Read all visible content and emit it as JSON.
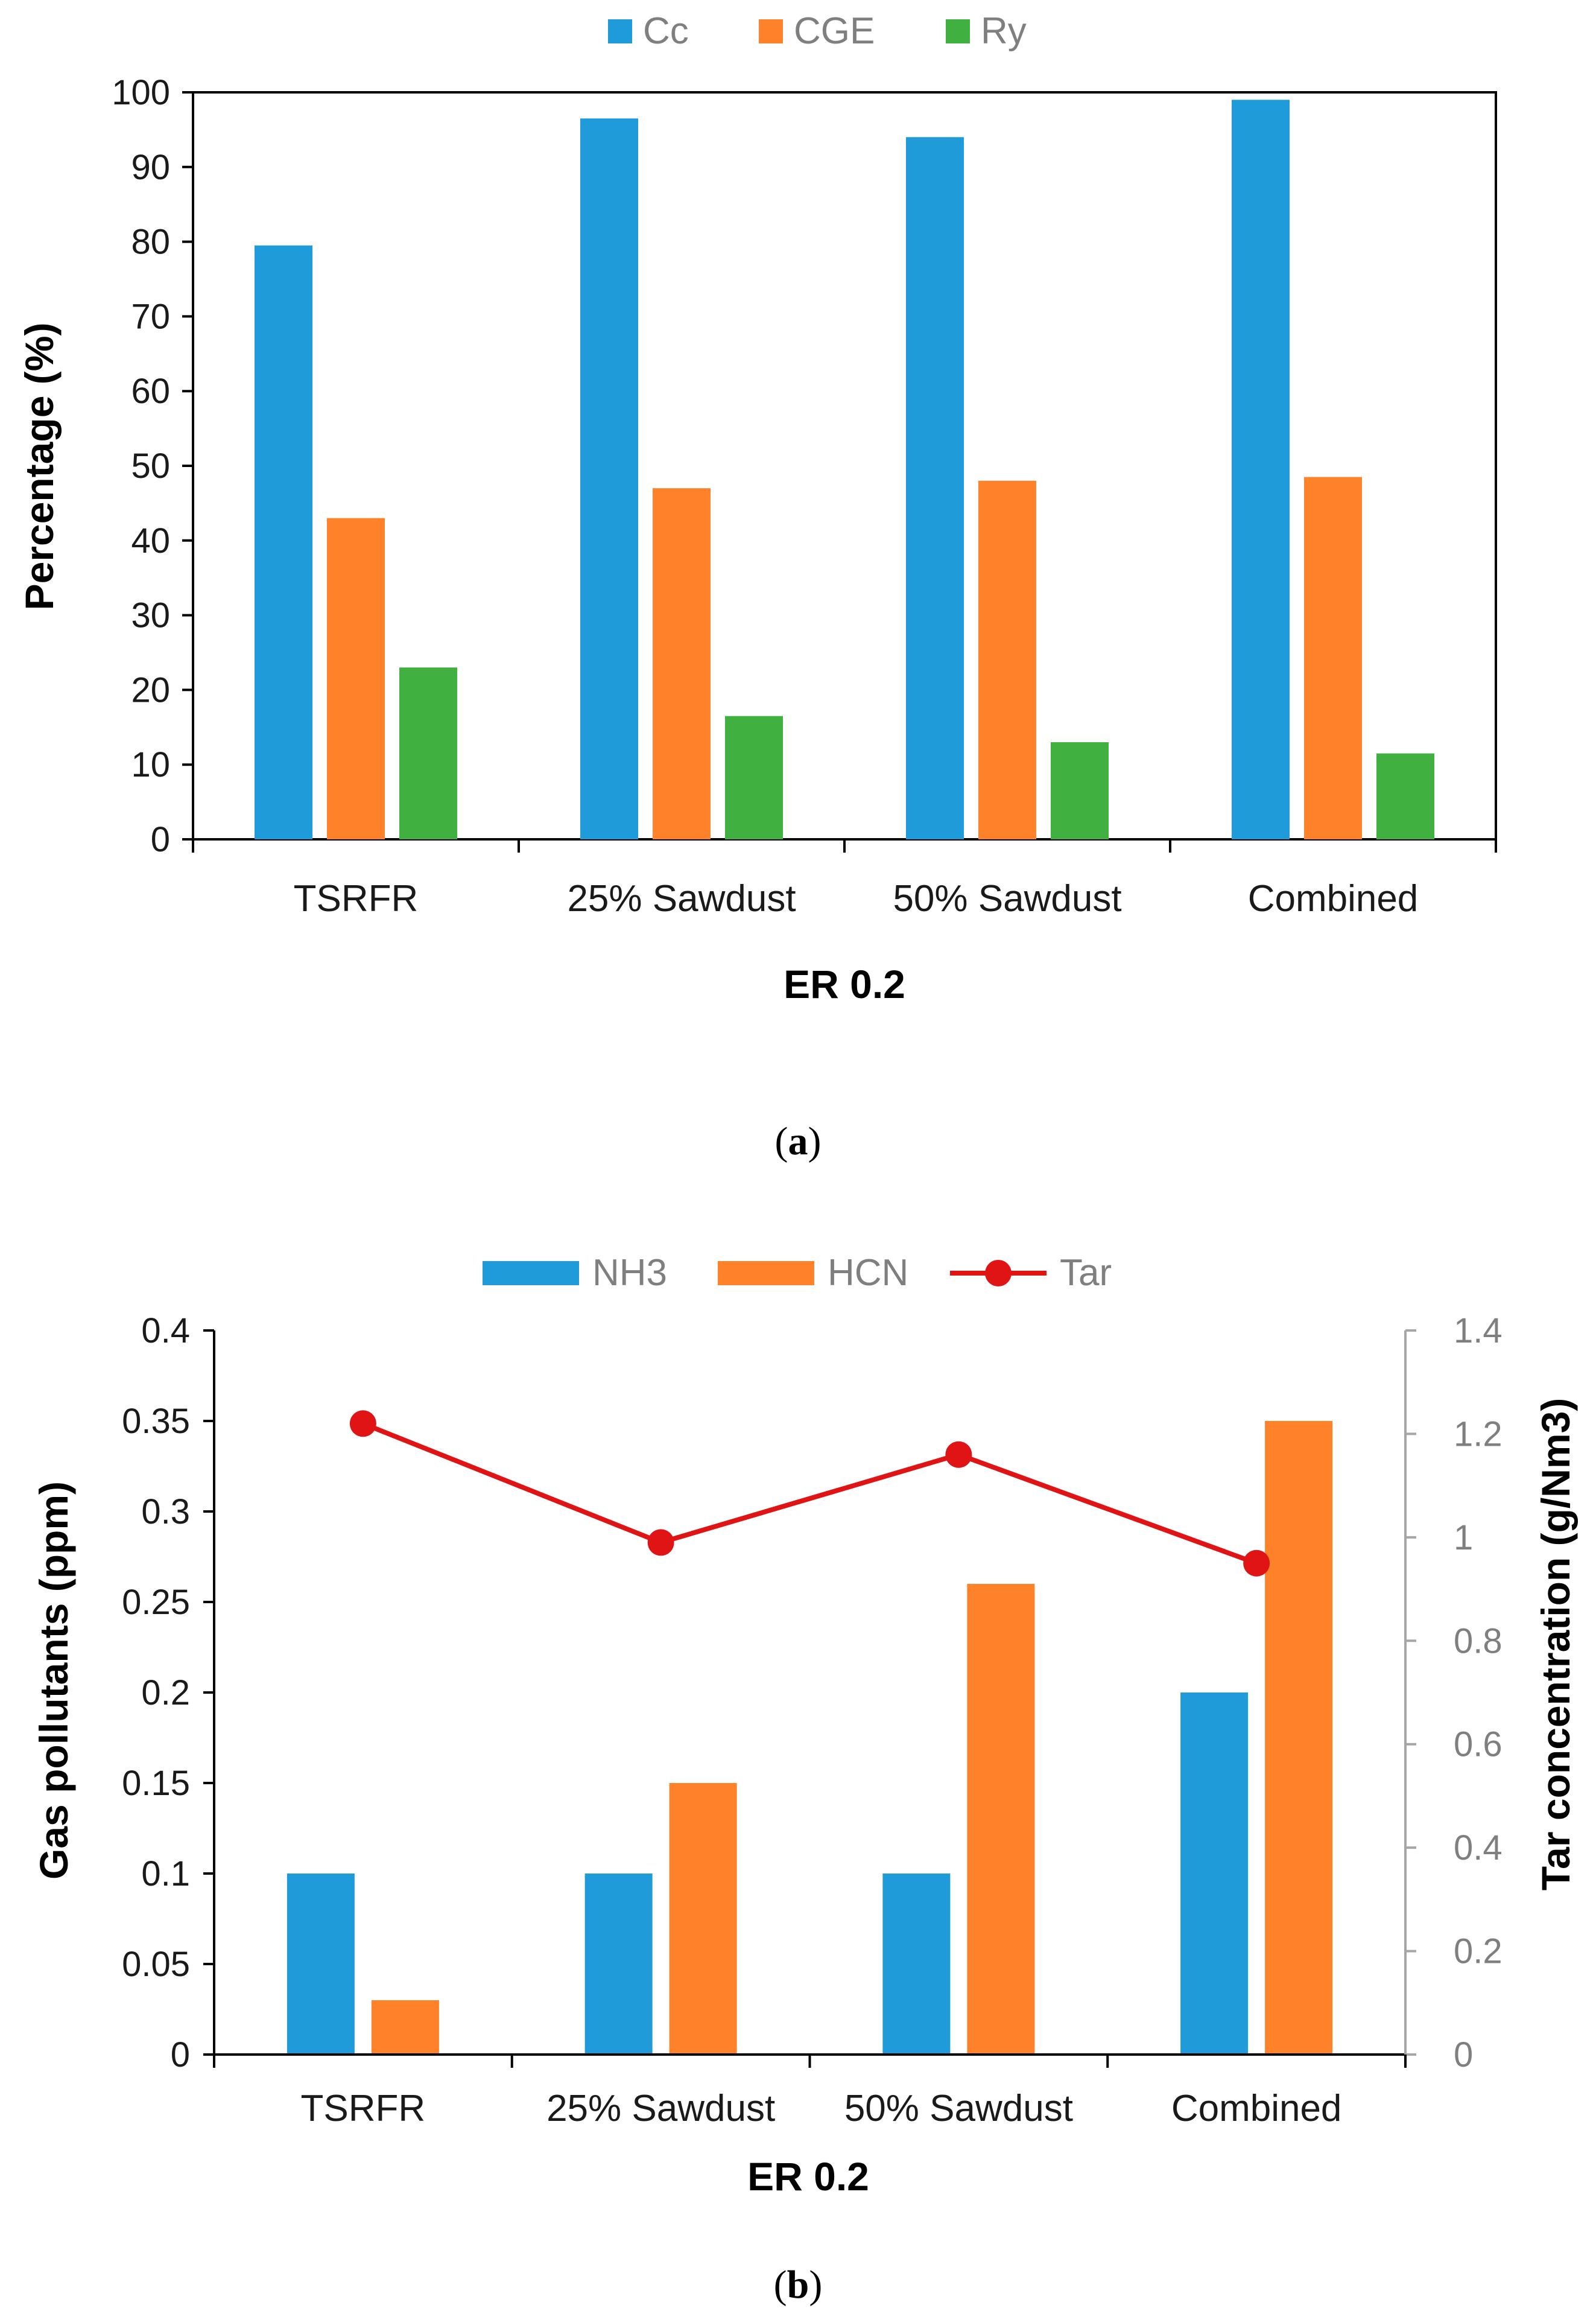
{
  "chart_data": [
    {
      "type": "bar",
      "panel_label": "a",
      "categories": [
        "TSRFR",
        "25% Sawdust",
        "50% Sawdust",
        "Combined"
      ],
      "series": [
        {
          "name": "Cc",
          "color": "#1f9bd9",
          "values": [
            79.5,
            96.5,
            94,
            99
          ]
        },
        {
          "name": "CGE",
          "color": "#ff8129",
          "values": [
            43,
            47,
            48,
            48.5
          ]
        },
        {
          "name": "Ry",
          "color": "#40b040",
          "values": [
            23,
            16.5,
            13,
            11.5
          ]
        }
      ],
      "xlabel": "ER 0.2",
      "ylabel": "Percentage (%)",
      "ylim": [
        0,
        100
      ],
      "yticks": [
        "0",
        "10",
        "20",
        "30",
        "40",
        "50",
        "60",
        "70",
        "80",
        "90",
        "100"
      ],
      "legend_position": "top-center"
    },
    {
      "type": "bar+line",
      "panel_label": "b",
      "categories": [
        "TSRFR",
        "25% Sawdust",
        "50% Sawdust",
        "Combined"
      ],
      "series": [
        {
          "name": "NH3",
          "color": "#1f9bd9",
          "axis": "left",
          "values": [
            0.1,
            0.1,
            0.1,
            0.2
          ]
        },
        {
          "name": "HCN",
          "color": "#ff8129",
          "axis": "left",
          "values": [
            0.03,
            0.15,
            0.26,
            0.35
          ]
        },
        {
          "name": "Tar",
          "color": "#e01414",
          "axis": "right",
          "values": [
            1.22,
            0.99,
            1.16,
            0.95
          ]
        }
      ],
      "xlabel": "ER 0.2",
      "ylabel": "Gas pollutants (ppm)",
      "y2label": "Tar concentration (g/Nm3)",
      "ylim": [
        0,
        0.4
      ],
      "y2lim": [
        0,
        1.4
      ],
      "yticks": [
        "0",
        "0.05",
        "0.1",
        "0.15",
        "0.2",
        "0.25",
        "0.3",
        "0.35",
        "0.4"
      ],
      "y2ticks": [
        "0",
        "0.2",
        "0.4",
        "0.6",
        "0.8",
        "1",
        "1.2",
        "1.4"
      ],
      "legend_position": "top-center"
    }
  ]
}
